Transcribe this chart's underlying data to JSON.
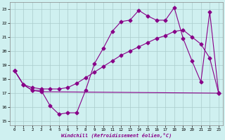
{
  "xlabel": "Windchill (Refroidissement éolien,°C)",
  "xlim": [
    -0.5,
    23.5
  ],
  "ylim": [
    14.7,
    23.5
  ],
  "yticks": [
    15,
    16,
    17,
    18,
    19,
    20,
    21,
    22,
    23
  ],
  "xticks": [
    0,
    1,
    2,
    3,
    4,
    5,
    6,
    7,
    8,
    9,
    10,
    11,
    12,
    13,
    14,
    15,
    16,
    17,
    18,
    19,
    20,
    21,
    22,
    23
  ],
  "background_color": "#cff0f0",
  "grid_color": "#aacccc",
  "line_color": "#880088",
  "line1_x": [
    0,
    1,
    2,
    3,
    4,
    5,
    6,
    7,
    8,
    9,
    10,
    11,
    12,
    13,
    14,
    15,
    16,
    17,
    18,
    19,
    20,
    21,
    22,
    23
  ],
  "line1_y": [
    18.6,
    17.6,
    17.2,
    17.2,
    16.1,
    15.5,
    15.6,
    15.6,
    17.2,
    19.1,
    20.2,
    21.4,
    22.1,
    22.2,
    22.9,
    22.5,
    22.2,
    22.2,
    23.1,
    20.9,
    19.3,
    17.8,
    22.8,
    17.0
  ],
  "line2_x": [
    0,
    1,
    2,
    3,
    23
  ],
  "line2_y": [
    18.6,
    17.6,
    17.2,
    17.1,
    17.0
  ],
  "line3_x": [
    0,
    1,
    2,
    3,
    4,
    5,
    6,
    7,
    8,
    9,
    10,
    11,
    12,
    13,
    14,
    15,
    16,
    17,
    18,
    19,
    20,
    21,
    22,
    23
  ],
  "line3_y": [
    18.6,
    17.6,
    17.4,
    17.3,
    17.3,
    17.3,
    17.4,
    17.7,
    18.1,
    18.5,
    18.9,
    19.3,
    19.7,
    20.0,
    20.3,
    20.6,
    20.9,
    21.1,
    21.4,
    21.5,
    21.0,
    20.5,
    19.5,
    17.0
  ],
  "marker": "D",
  "markersize": 2.5
}
